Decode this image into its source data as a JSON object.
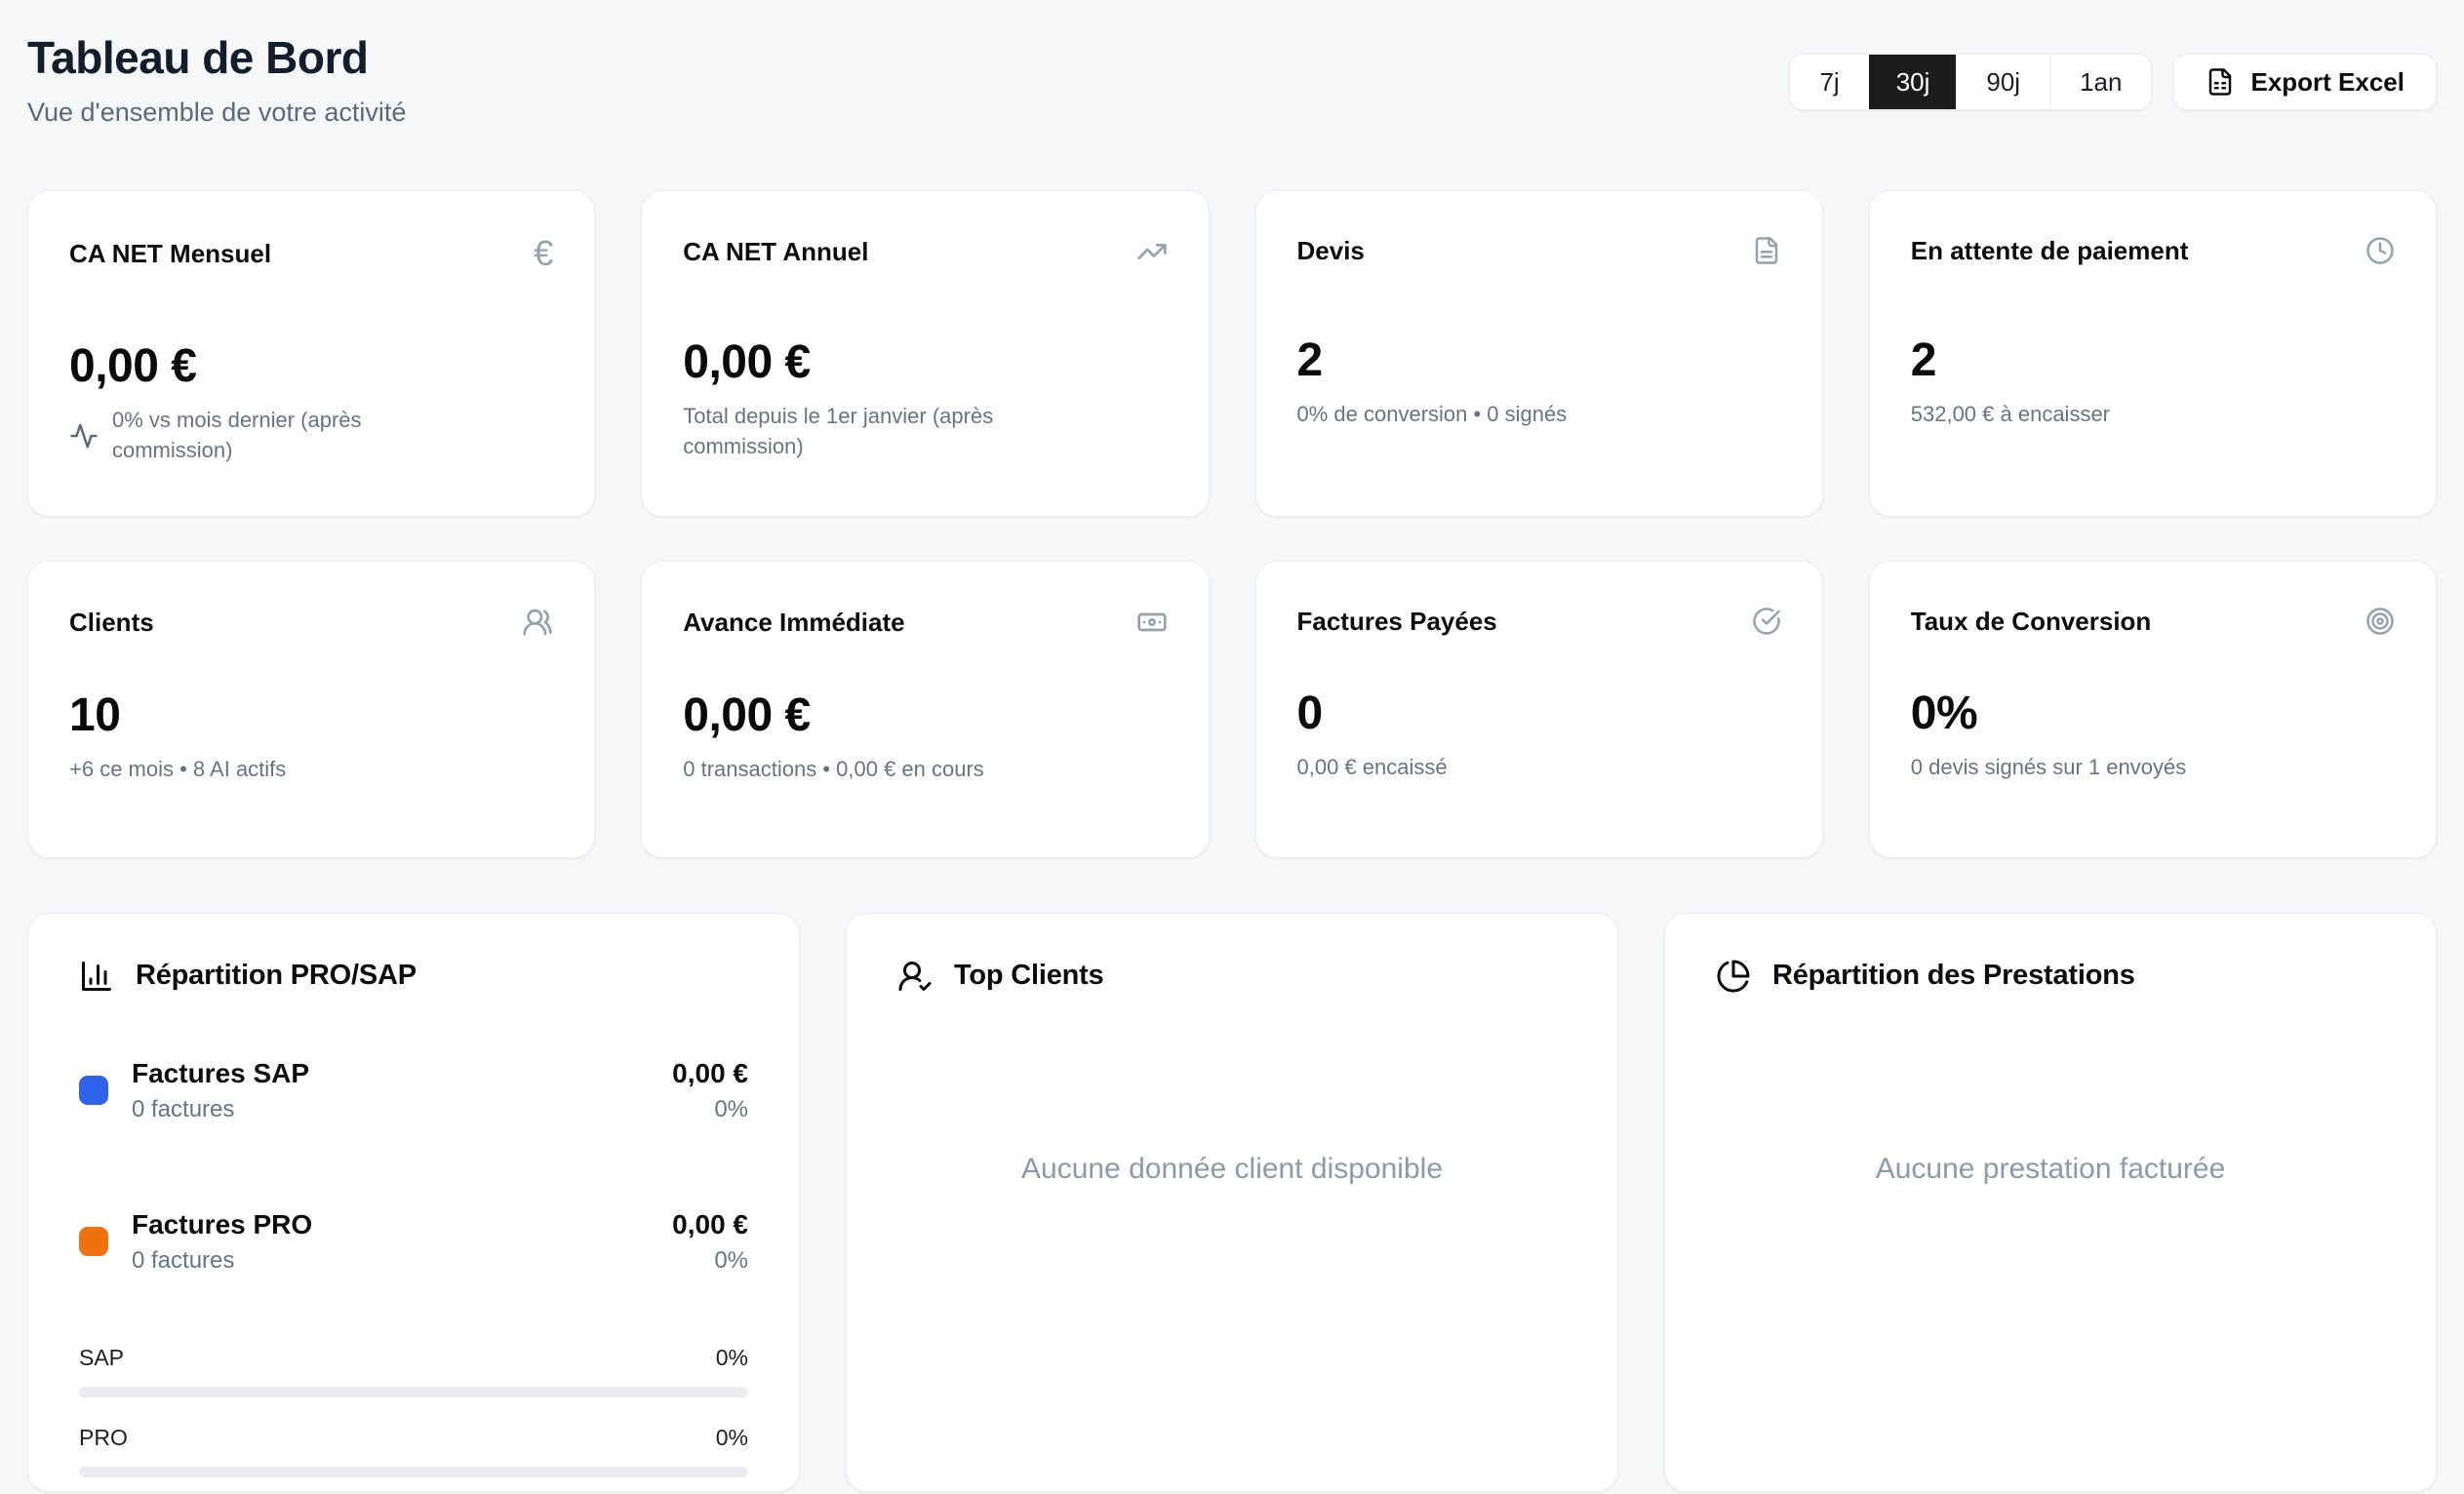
{
  "header": {
    "title": "Tableau de Bord",
    "subtitle": "Vue d'ensemble de votre activité",
    "range_buttons": [
      {
        "label": "7j",
        "active": false
      },
      {
        "label": "30j",
        "active": true
      },
      {
        "label": "90j",
        "active": false
      },
      {
        "label": "1an",
        "active": false
      }
    ],
    "export_label": "Export Excel"
  },
  "stats": [
    {
      "title": "CA NET Mensuel",
      "icon": "euro-icon",
      "value": "0,00 €",
      "sub": "0% vs mois dernier (après commission)"
    },
    {
      "title": "CA NET Annuel",
      "icon": "trending-up-icon",
      "value": "0,00 €",
      "sub": "Total depuis le 1er janvier (après commission)"
    },
    {
      "title": "Devis",
      "icon": "file-text-icon",
      "value": "2",
      "sub": "0% de conversion • 0 signés"
    },
    {
      "title": "En attente de paiement",
      "icon": "clock-icon",
      "value": "2",
      "sub": "532,00 € à encaisser"
    },
    {
      "title": "Clients",
      "icon": "users-icon",
      "value": "10",
      "sub": "+6 ce mois • 8 AI actifs"
    },
    {
      "title": "Avance Immédiate",
      "icon": "banknote-icon",
      "value": "0,00 €",
      "sub": "0 transactions • 0,00 € en cours"
    },
    {
      "title": "Factures Payées",
      "icon": "circle-check-icon",
      "value": "0",
      "sub": "0,00 € encaissé"
    },
    {
      "title": "Taux de Conversion",
      "icon": "target-icon",
      "value": "0%",
      "sub": "0 devis signés sur 1 envoyés"
    }
  ],
  "breakdown": {
    "title": "Répartition PRO/SAP",
    "items": [
      {
        "label": "Factures SAP",
        "count": "0 factures",
        "amount": "0,00 €",
        "percent": "0%",
        "color": "#2f62ea"
      },
      {
        "label": "Factures PRO",
        "count": "0 factures",
        "amount": "0,00 €",
        "percent": "0%",
        "color": "#ef700f"
      }
    ],
    "bars": [
      {
        "label": "SAP",
        "percent": "0%",
        "value": 0
      },
      {
        "label": "PRO",
        "percent": "0%",
        "value": 0
      }
    ]
  },
  "top_clients": {
    "title": "Top Clients",
    "empty": "Aucune donnée client disponible"
  },
  "prestations": {
    "title": "Répartition des Prestations",
    "empty": "Aucune prestation facturée"
  },
  "colors": {
    "background": "#f6f7f9",
    "card": "#ffffff",
    "accent_blue": "#2f62ea",
    "accent_orange": "#ef700f",
    "active_segment": "#1c1c1e",
    "muted_text": "#6a7384"
  }
}
